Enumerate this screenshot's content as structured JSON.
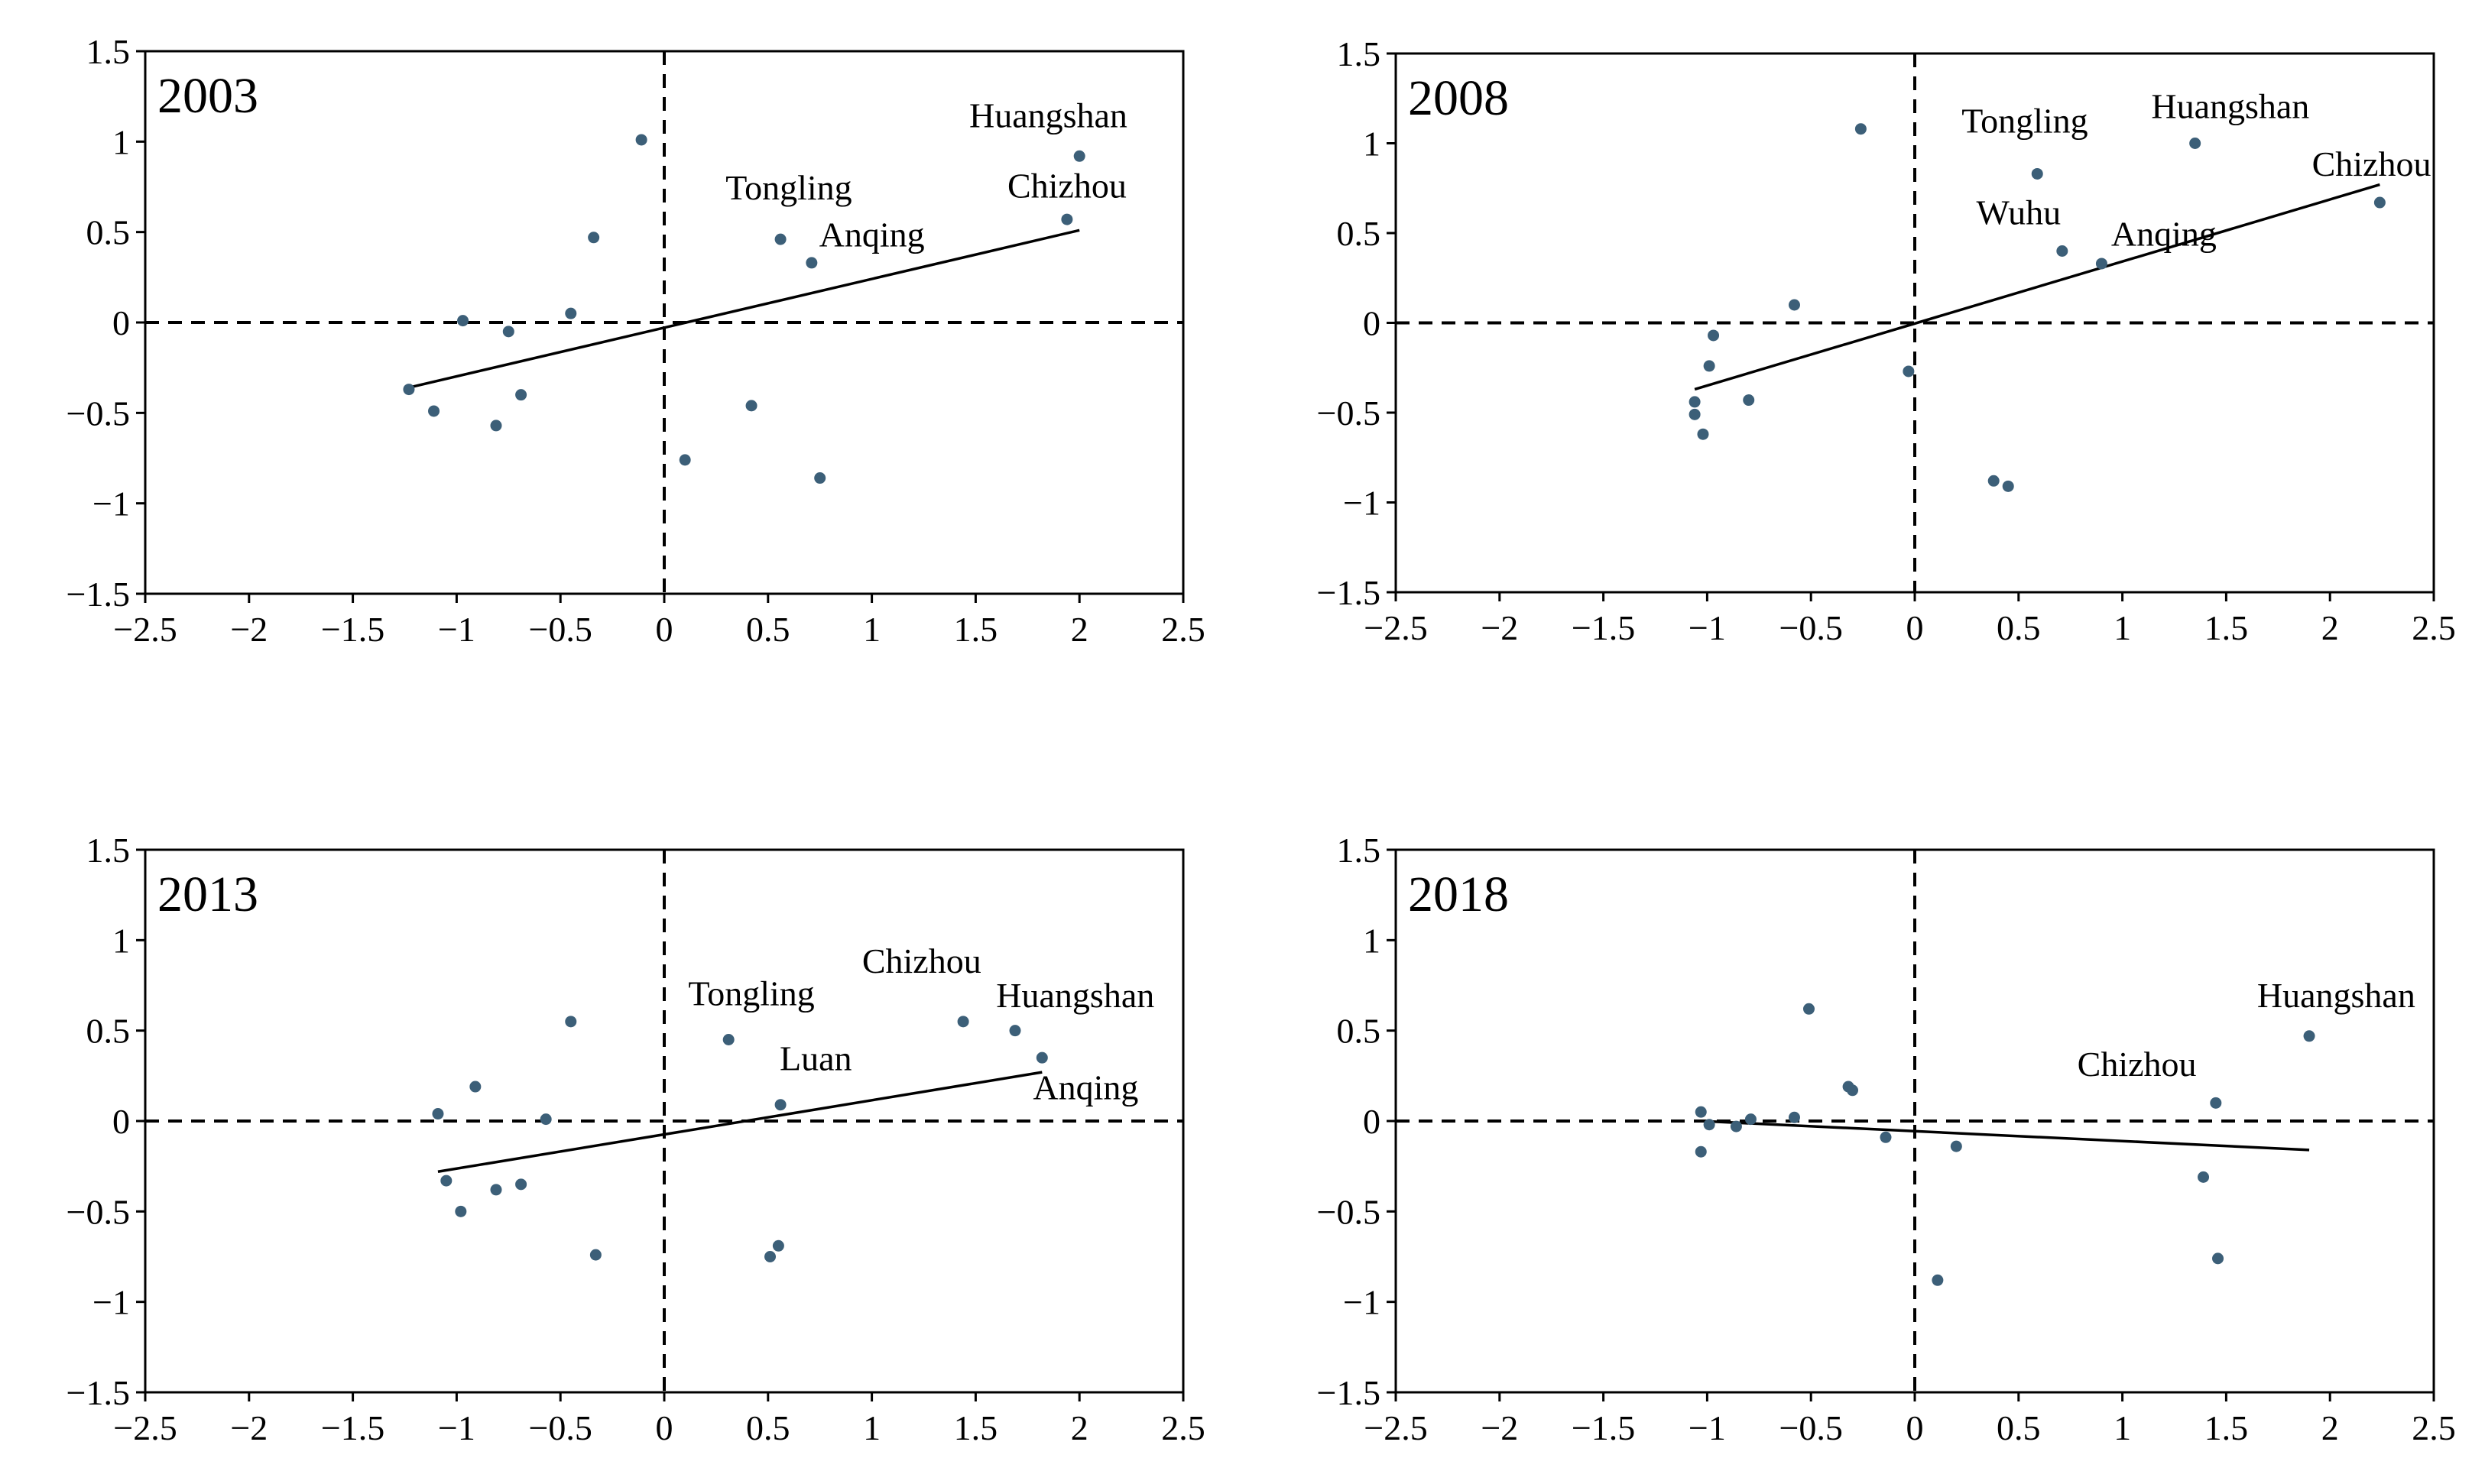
{
  "chart_data": [
    {
      "type": "scatter",
      "title": "2003",
      "xlabel": "",
      "ylabel": "",
      "xlim": [
        -2.5,
        2.5
      ],
      "ylim": [
        -1.5,
        1.5
      ],
      "xticks": [
        -2.5,
        -2,
        -1.5,
        -1,
        -0.5,
        0,
        0.5,
        1,
        1.5,
        2,
        2.5
      ],
      "yticks": [
        -1.5,
        -1,
        -0.5,
        0,
        0.5,
        1,
        1.5
      ],
      "xtick_labels": [
        "−2.5",
        "−2",
        "−1.5",
        "−1",
        "−0.5",
        "0",
        "0.5",
        "1",
        "1.5",
        "2",
        "2.5"
      ],
      "ytick_labels": [
        "−1.5",
        "−1",
        "−0.5",
        "0",
        "0.5",
        "1",
        "1.5"
      ],
      "points": [
        {
          "x": -0.11,
          "y": 1.01
        },
        {
          "x": -0.34,
          "y": 0.47
        },
        {
          "x": -0.45,
          "y": 0.05
        },
        {
          "x": -0.97,
          "y": 0.01
        },
        {
          "x": -0.75,
          "y": -0.05
        },
        {
          "x": -0.69,
          "y": -0.4
        },
        {
          "x": -1.23,
          "y": -0.37
        },
        {
          "x": -1.11,
          "y": -0.49
        },
        {
          "x": -0.81,
          "y": -0.57
        },
        {
          "x": 0.1,
          "y": -0.76
        },
        {
          "x": 0.42,
          "y": -0.46
        },
        {
          "x": 0.75,
          "y": -0.86
        },
        {
          "x": 0.56,
          "y": 0.46
        },
        {
          "x": 0.71,
          "y": 0.33
        },
        {
          "x": 1.94,
          "y": 0.57
        },
        {
          "x": 2.0,
          "y": 0.92
        }
      ],
      "point_color": "#3c5f78",
      "trendline": {
        "x": [
          -1.23,
          2.0
        ],
        "y": [
          -0.36,
          0.51
        ]
      },
      "annotations": [
        {
          "text": "Huangshan",
          "x": 1.85,
          "y": 1.08
        },
        {
          "text": "Chizhou",
          "x": 1.94,
          "y": 0.69
        },
        {
          "text": "Tongling",
          "x": 0.6,
          "y": 0.68
        },
        {
          "text": "Anqing",
          "x": 1.0,
          "y": 0.42
        }
      ]
    },
    {
      "type": "scatter",
      "title": "2008",
      "xlabel": "",
      "ylabel": "",
      "xlim": [
        -2.5,
        2.5
      ],
      "ylim": [
        -1.5,
        1.5
      ],
      "xticks": [
        -2.5,
        -2,
        -1.5,
        -1,
        -0.5,
        0,
        0.5,
        1,
        1.5,
        2,
        2.5
      ],
      "yticks": [
        -1.5,
        -1,
        -0.5,
        0,
        0.5,
        1,
        1.5
      ],
      "xtick_labels": [
        "−2.5",
        "−2",
        "−1.5",
        "−1",
        "−0.5",
        "0",
        "0.5",
        "1",
        "1.5",
        "2",
        "2.5"
      ],
      "ytick_labels": [
        "−1.5",
        "−1",
        "−0.5",
        "0",
        "0.5",
        "1",
        "1.5"
      ],
      "points": [
        {
          "x": -0.26,
          "y": 1.08
        },
        {
          "x": -0.58,
          "y": 0.1
        },
        {
          "x": -0.97,
          "y": -0.07
        },
        {
          "x": -0.99,
          "y": -0.24
        },
        {
          "x": -1.06,
          "y": -0.44
        },
        {
          "x": -1.06,
          "y": -0.51
        },
        {
          "x": -1.02,
          "y": -0.62
        },
        {
          "x": -0.8,
          "y": -0.43
        },
        {
          "x": -0.03,
          "y": -0.27
        },
        {
          "x": 0.38,
          "y": -0.88
        },
        {
          "x": 0.45,
          "y": -0.91
        },
        {
          "x": 0.59,
          "y": 0.83
        },
        {
          "x": 0.71,
          "y": 0.4
        },
        {
          "x": 0.9,
          "y": 0.33
        },
        {
          "x": 1.35,
          "y": 1.0
        },
        {
          "x": 2.24,
          "y": 0.67
        }
      ],
      "point_color": "#3c5f78",
      "trendline": {
        "x": [
          -1.06,
          2.24
        ],
        "y": [
          -0.37,
          0.77
        ]
      },
      "annotations": [
        {
          "text": "Tongling",
          "x": 0.53,
          "y": 1.06
        },
        {
          "text": "Huangshan",
          "x": 1.52,
          "y": 1.14
        },
        {
          "text": "Chizhou",
          "x": 2.2,
          "y": 0.82
        },
        {
          "text": "Wuhu",
          "x": 0.5,
          "y": 0.55
        },
        {
          "text": "Anqing",
          "x": 1.2,
          "y": 0.43
        }
      ]
    },
    {
      "type": "scatter",
      "title": "2013",
      "xlabel": "",
      "ylabel": "",
      "xlim": [
        -2.5,
        2.5
      ],
      "ylim": [
        -1.5,
        1.5
      ],
      "xticks": [
        -2.5,
        -2,
        -1.5,
        -1,
        -0.5,
        0,
        0.5,
        1,
        1.5,
        2,
        2.5
      ],
      "yticks": [
        -1.5,
        -1,
        -0.5,
        0,
        0.5,
        1,
        1.5
      ],
      "xtick_labels": [
        "−2.5",
        "−2",
        "−1.5",
        "−1",
        "−0.5",
        "0",
        "0.5",
        "1",
        "1.5",
        "2",
        "2.5"
      ],
      "ytick_labels": [
        "−1.5",
        "−1",
        "−0.5",
        "0",
        "0.5",
        "1",
        "1.5"
      ],
      "points": [
        {
          "x": -0.45,
          "y": 0.55
        },
        {
          "x": -0.91,
          "y": 0.19
        },
        {
          "x": -1.09,
          "y": 0.04
        },
        {
          "x": -0.57,
          "y": 0.01
        },
        {
          "x": -1.05,
          "y": -0.33
        },
        {
          "x": -0.81,
          "y": -0.38
        },
        {
          "x": -0.69,
          "y": -0.35
        },
        {
          "x": -0.98,
          "y": -0.5
        },
        {
          "x": -0.33,
          "y": -0.74
        },
        {
          "x": 0.31,
          "y": 0.45
        },
        {
          "x": 0.56,
          "y": 0.09
        },
        {
          "x": 0.55,
          "y": -0.69
        },
        {
          "x": 0.51,
          "y": -0.75
        },
        {
          "x": 1.44,
          "y": 0.55
        },
        {
          "x": 1.69,
          "y": 0.5
        },
        {
          "x": 1.82,
          "y": 0.35
        }
      ],
      "point_color": "#3c5f78",
      "trendline": {
        "x": [
          -1.09,
          1.82
        ],
        "y": [
          -0.28,
          0.27
        ]
      },
      "annotations": [
        {
          "text": "Tongling",
          "x": 0.42,
          "y": 0.64
        },
        {
          "text": "Chizhou",
          "x": 1.24,
          "y": 0.82
        },
        {
          "text": "Huangshan",
          "x": 1.98,
          "y": 0.63
        },
        {
          "text": "Luan",
          "x": 0.73,
          "y": 0.28
        },
        {
          "text": "Anqing",
          "x": 2.03,
          "y": 0.12
        }
      ]
    },
    {
      "type": "scatter",
      "title": "2018",
      "xlabel": "",
      "ylabel": "",
      "xlim": [
        -2.5,
        2.5
      ],
      "ylim": [
        -1.5,
        1.5
      ],
      "xticks": [
        -2.5,
        -2,
        -1.5,
        -1,
        -0.5,
        0,
        0.5,
        1,
        1.5,
        2,
        2.5
      ],
      "yticks": [
        -1.5,
        -1,
        -0.5,
        0,
        0.5,
        1,
        1.5
      ],
      "xtick_labels": [
        "−2.5",
        "−2",
        "−1.5",
        "−1",
        "−0.5",
        "0",
        "0.5",
        "1",
        "1.5",
        "2",
        "2.5"
      ],
      "ytick_labels": [
        "−1.5",
        "−1",
        "−0.5",
        "0",
        "0.5",
        "1",
        "1.5"
      ],
      "points": [
        {
          "x": -0.51,
          "y": 0.62
        },
        {
          "x": -0.32,
          "y": 0.19
        },
        {
          "x": -0.3,
          "y": 0.17
        },
        {
          "x": -1.03,
          "y": 0.05
        },
        {
          "x": -0.99,
          "y": -0.02
        },
        {
          "x": -0.86,
          "y": -0.03
        },
        {
          "x": -0.79,
          "y": 0.01
        },
        {
          "x": -0.58,
          "y": 0.02
        },
        {
          "x": -1.03,
          "y": -0.17
        },
        {
          "x": -0.14,
          "y": -0.09
        },
        {
          "x": 0.2,
          "y": -0.14
        },
        {
          "x": 0.11,
          "y": -0.88
        },
        {
          "x": 1.39,
          "y": -0.31
        },
        {
          "x": 1.46,
          "y": -0.76
        },
        {
          "x": 1.45,
          "y": 0.1
        },
        {
          "x": 1.9,
          "y": 0.47
        }
      ],
      "point_color": "#3c5f78",
      "trendline": {
        "x": [
          -1.03,
          1.9
        ],
        "y": [
          0.0,
          -0.16
        ]
      },
      "annotations": [
        {
          "text": "Huangshan",
          "x": 2.03,
          "y": 0.63
        },
        {
          "text": "Chizhou",
          "x": 1.07,
          "y": 0.25
        }
      ]
    }
  ]
}
